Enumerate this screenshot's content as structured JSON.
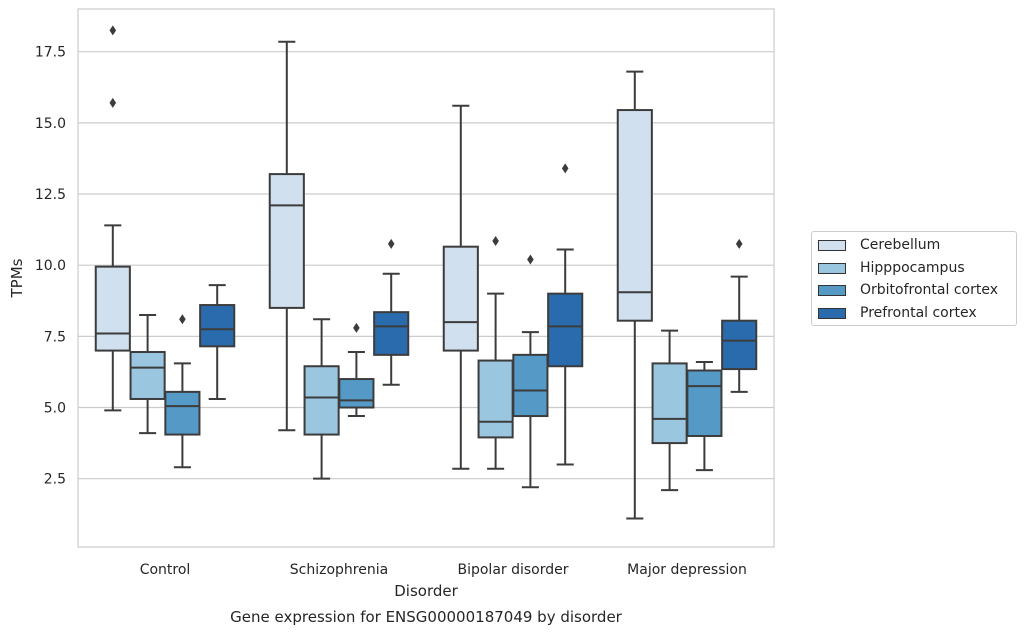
{
  "chart_data": {
    "type": "box",
    "title": "Gene expression for ENSG00000187049 by disorder",
    "xlabel": "Disorder",
    "ylabel": "TPMs",
    "ylim": [
      0.1,
      19.0
    ],
    "yticks": [
      "2.5",
      "5.0",
      "7.5",
      "10.0",
      "12.5",
      "15.0",
      "17.5"
    ],
    "categories": [
      "Control",
      "Schizophrenia",
      "Bipolar disorder",
      "Major depression"
    ],
    "grid": "horizontal",
    "legend_position": "right",
    "series": [
      {
        "name": "Cerebellum",
        "color": "#d0e0ef",
        "boxes": [
          {
            "whisker_low": 4.9,
            "q1": 7.0,
            "median": 7.6,
            "q3": 9.95,
            "whisker_high": 11.4,
            "outliers": [
              15.7,
              18.25
            ]
          },
          {
            "whisker_low": 4.2,
            "q1": 8.5,
            "median": 12.1,
            "q3": 13.2,
            "whisker_high": 17.85,
            "outliers": []
          },
          {
            "whisker_low": 2.85,
            "q1": 7.0,
            "median": 8.0,
            "q3": 10.65,
            "whisker_high": 15.6,
            "outliers": []
          },
          {
            "whisker_low": 1.1,
            "q1": 8.05,
            "median": 9.05,
            "q3": 15.45,
            "whisker_high": 16.8,
            "outliers": []
          }
        ]
      },
      {
        "name": "Hipppocampus",
        "color": "#9ac6e0",
        "boxes": [
          {
            "whisker_low": 4.1,
            "q1": 5.3,
            "median": 6.4,
            "q3": 6.95,
            "whisker_high": 8.25,
            "outliers": []
          },
          {
            "whisker_low": 2.5,
            "q1": 4.05,
            "median": 5.35,
            "q3": 6.45,
            "whisker_high": 8.1,
            "outliers": []
          },
          {
            "whisker_low": 2.85,
            "q1": 3.95,
            "median": 4.5,
            "q3": 6.65,
            "whisker_high": 9.0,
            "outliers": [
              10.85
            ]
          },
          {
            "whisker_low": 2.1,
            "q1": 3.75,
            "median": 4.6,
            "q3": 6.55,
            "whisker_high": 7.7,
            "outliers": []
          }
        ]
      },
      {
        "name": "Orbitofrontal cortex",
        "color": "#5599c6",
        "boxes": [
          {
            "whisker_low": 2.9,
            "q1": 4.05,
            "median": 5.05,
            "q3": 5.55,
            "whisker_high": 6.55,
            "outliers": [
              8.1
            ]
          },
          {
            "whisker_low": 4.7,
            "q1": 5.0,
            "median": 5.25,
            "q3": 6.0,
            "whisker_high": 6.95,
            "outliers": [
              7.8
            ]
          },
          {
            "whisker_low": 2.2,
            "q1": 4.7,
            "median": 5.6,
            "q3": 6.85,
            "whisker_high": 7.65,
            "outliers": [
              10.2
            ]
          },
          {
            "whisker_low": 2.8,
            "q1": 4.0,
            "median": 5.75,
            "q3": 6.3,
            "whisker_high": 6.6,
            "outliers": []
          }
        ]
      },
      {
        "name": "Prefrontal cortex",
        "color": "#2a6bae",
        "boxes": [
          {
            "whisker_low": 5.3,
            "q1": 7.15,
            "median": 7.75,
            "q3": 8.6,
            "whisker_high": 9.3,
            "outliers": []
          },
          {
            "whisker_low": 5.8,
            "q1": 6.85,
            "median": 7.85,
            "q3": 8.35,
            "whisker_high": 9.7,
            "outliers": [
              10.75
            ]
          },
          {
            "whisker_low": 3.0,
            "q1": 6.45,
            "median": 7.85,
            "q3": 9.0,
            "whisker_high": 10.55,
            "outliers": [
              13.4
            ]
          },
          {
            "whisker_low": 5.55,
            "q1": 6.35,
            "median": 7.35,
            "q3": 8.05,
            "whisker_high": 9.6,
            "outliers": [
              10.75
            ]
          }
        ]
      }
    ]
  }
}
